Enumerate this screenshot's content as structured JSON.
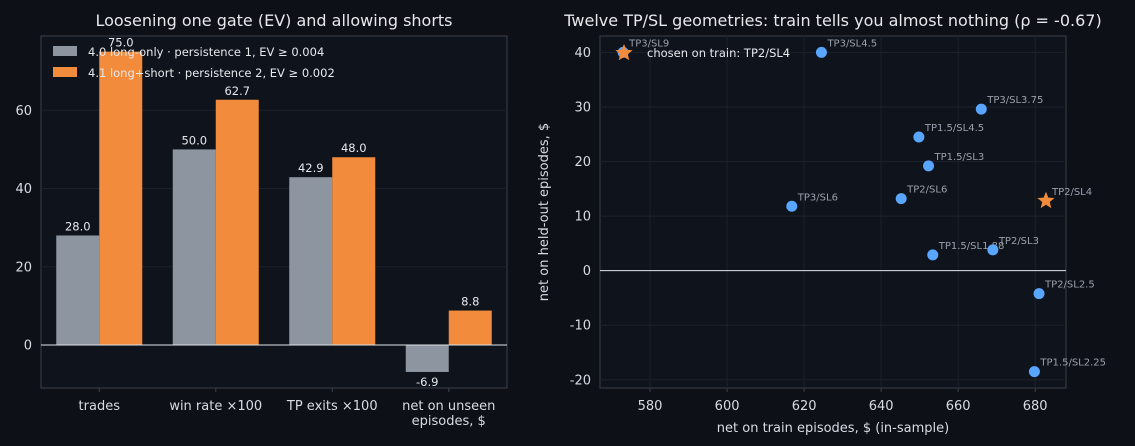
{
  "colors": {
    "background": "#0d1017",
    "panel": "#0f131b",
    "grey_series": "#8d95a1",
    "orange_series": "#f28c3c",
    "point_blue": "#58a6ff",
    "point_chosen": "#f28c3c",
    "grid": "#1c222d",
    "frame": "#3a404b"
  },
  "chart_data": [
    {
      "type": "bar",
      "title": "Loosening one gate (EV) and allowing shorts",
      "categories": [
        "trades",
        "win rate ×100",
        "TP exits ×100",
        "net on unseen\nepisodes, $"
      ],
      "category_lines": [
        [
          "trades"
        ],
        [
          "win rate ×100"
        ],
        [
          "TP exits ×100"
        ],
        [
          "net on unseen",
          "episodes, $"
        ]
      ],
      "series": [
        {
          "name": "4.0 long-only · persistence 1, EV ≥ 0.004",
          "values": [
            28.0,
            50.0,
            42.9,
            -6.9
          ],
          "color": "#8d95a1"
        },
        {
          "name": "4.1 long+short · persistence 2, EV ≥ 0.002",
          "values": [
            75.0,
            62.7,
            48.0,
            8.8
          ],
          "color": "#f28c3c"
        }
      ],
      "value_labels": [
        [
          "28.0",
          "50.0",
          "42.9",
          "-6.9"
        ],
        [
          "75.0",
          "62.7",
          "48.0",
          "8.8"
        ]
      ],
      "ylim": [
        -11,
        79
      ],
      "yticks": [
        0,
        20,
        40,
        60
      ],
      "xlabel": "",
      "ylabel": "",
      "legend_position": "top-left",
      "grid": true
    },
    {
      "type": "scatter",
      "title": "Twelve TP/SL geometries: train tells you almost nothing (ρ = -0.67)",
      "xlabel": "net on train episodes, $ (in-sample)",
      "ylabel": "net on held-out episodes, $",
      "xlim": [
        567,
        688
      ],
      "ylim": [
        -21.5,
        43
      ],
      "xticks": [
        580,
        600,
        620,
        640,
        660,
        680
      ],
      "yticks": [
        -20,
        -10,
        0,
        10,
        20,
        30,
        40
      ],
      "grid": true,
      "hline": 0,
      "points": [
        {
          "label": "TP3/SL9",
          "x": 573.0,
          "y": 40.0
        },
        {
          "label": "TP3/SL4.5",
          "x": 624.5,
          "y": 40.0
        },
        {
          "label": "TP3/SL3.75",
          "x": 666.0,
          "y": 29.6
        },
        {
          "label": "TP1.5/SL4.5",
          "x": 649.8,
          "y": 24.5
        },
        {
          "label": "TP1.5/SL3",
          "x": 652.3,
          "y": 19.2
        },
        {
          "label": "TP2/SL6",
          "x": 645.2,
          "y": 13.2
        },
        {
          "label": "TP3/SL6",
          "x": 616.8,
          "y": 11.8
        },
        {
          "label": "TP1.5/SL1.88",
          "x": 653.4,
          "y": 2.9
        },
        {
          "label": "TP2/SL3",
          "x": 669.0,
          "y": 3.8
        },
        {
          "label": "TP2/SL2.5",
          "x": 681.0,
          "y": -4.2
        },
        {
          "label": "TP1.5/SL2.25",
          "x": 679.8,
          "y": -18.5
        },
        {
          "label": "TP2/SL4",
          "x": 682.8,
          "y": 12.8,
          "chosen": true
        }
      ],
      "legend": {
        "label": "chosen on train: TP2/SL4",
        "position": "top-left"
      }
    }
  ]
}
